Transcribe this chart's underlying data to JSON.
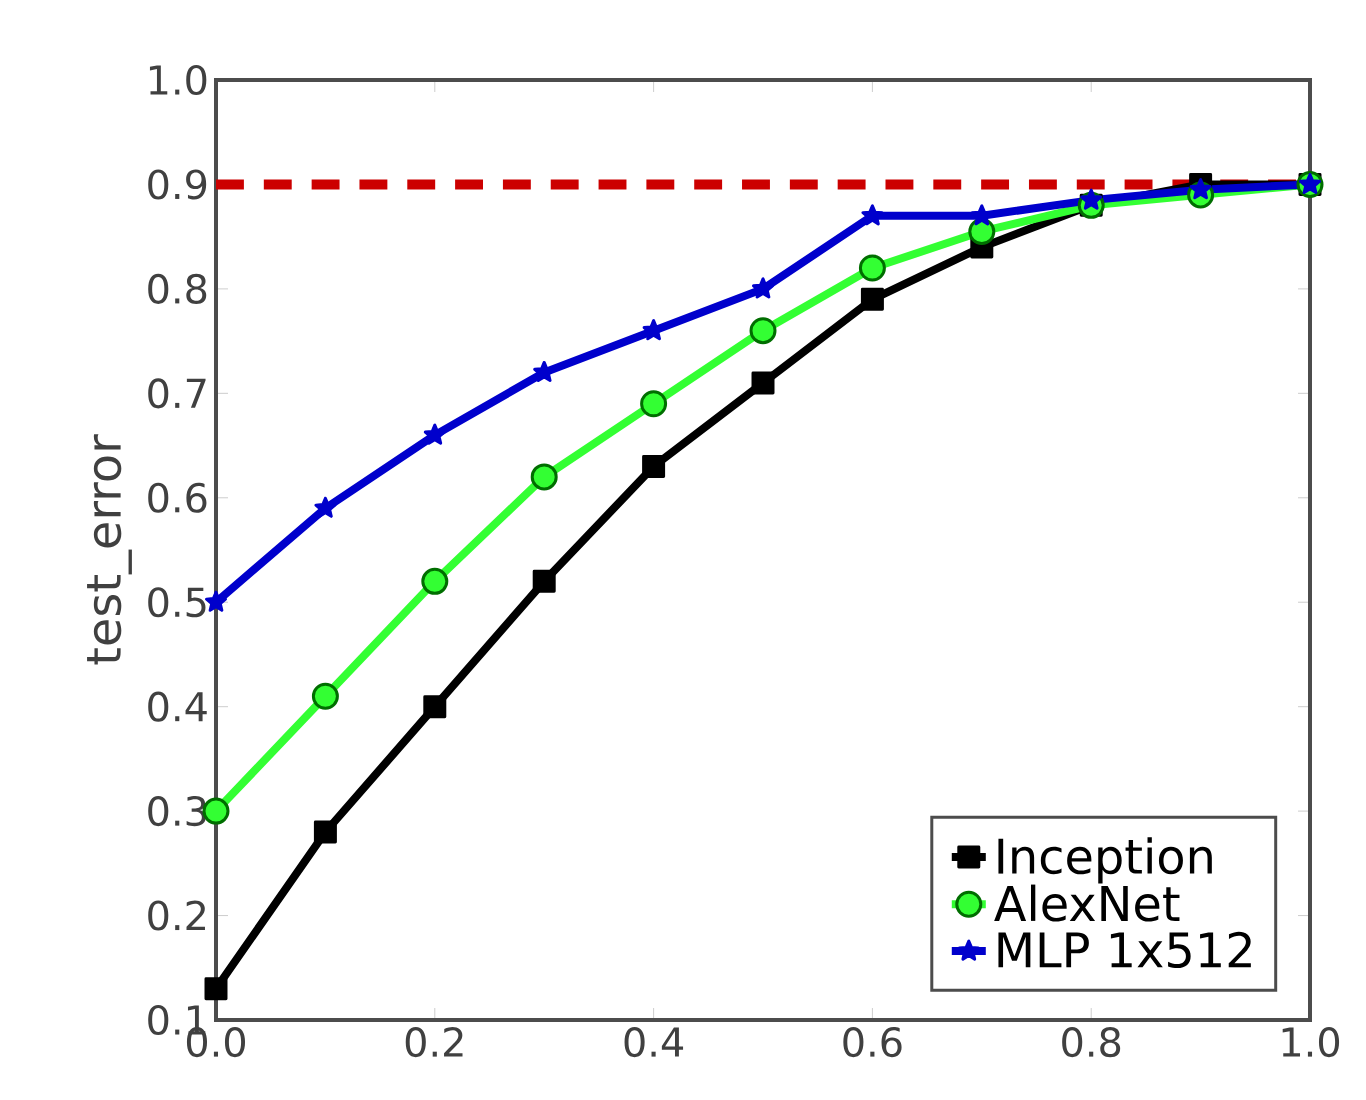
{
  "chart_data": {
    "type": "line",
    "ylabel": "test_error",
    "x": [
      0.0,
      0.1,
      0.2,
      0.3,
      0.4,
      0.5,
      0.6,
      0.7,
      0.8,
      0.9,
      1.0
    ],
    "series": [
      {
        "name": "Inception",
        "color": "#000000",
        "marker": "square",
        "values": [
          0.13,
          0.28,
          0.4,
          0.52,
          0.63,
          0.71,
          0.79,
          0.84,
          0.88,
          0.9,
          0.9
        ]
      },
      {
        "name": "AlexNet",
        "color": "#33ff33",
        "marker": "circle",
        "values": [
          0.3,
          0.41,
          0.52,
          0.62,
          0.69,
          0.76,
          0.82,
          0.855,
          0.88,
          0.89,
          0.9
        ]
      },
      {
        "name": "MLP 1x512",
        "color": "#0000cc",
        "marker": "star",
        "values": [
          0.5,
          0.59,
          0.66,
          0.72,
          0.76,
          0.8,
          0.87,
          0.87,
          0.885,
          0.895,
          0.9
        ]
      }
    ],
    "ref_lines": [
      {
        "axis": "y",
        "value": 0.9,
        "color": "#cc0000",
        "line_style": "dashed"
      }
    ],
    "xlim": [
      0.0,
      1.0
    ],
    "ylim": [
      0.1,
      1.0
    ],
    "xticks": [
      {
        "value": 0.0,
        "label": "0.0"
      },
      0.2,
      0.4,
      0.6,
      0.8,
      {
        "value": 1.0,
        "label": "1.0"
      }
    ],
    "yticks": [
      0.1,
      0.2,
      0.3,
      0.4,
      0.5,
      0.6,
      0.7,
      0.8,
      0.9,
      {
        "value": 1.0,
        "label": "1.0"
      }
    ],
    "grid": false,
    "legend": "bottom right",
    "line_style": "solid"
  }
}
